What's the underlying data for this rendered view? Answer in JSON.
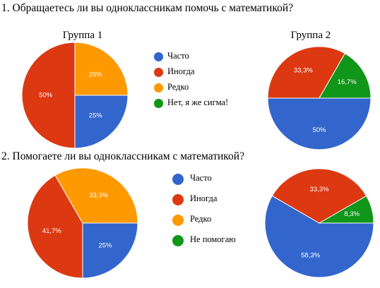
{
  "questions": {
    "q1": "1. Обращаетесь ли вы одноклассникам помочь с математикой?",
    "q2": "2. Помогаете ли вы одноклассникам с математикой?"
  },
  "groups": {
    "g1": "Группа 1",
    "g2": "Группа 2"
  },
  "colors": {
    "blue": "#3366cc",
    "red": "#dc3912",
    "orange": "#ff9900",
    "green": "#109618"
  },
  "legend1": [
    {
      "label": "Часто",
      "color": "#3366cc"
    },
    {
      "label": "Иногда",
      "color": "#dc3912"
    },
    {
      "label": "Редко",
      "color": "#ff9900"
    },
    {
      "label": "Нет, я же сигма!",
      "color": "#109618"
    }
  ],
  "legend2": [
    {
      "label": "Часто",
      "color": "#3366cc"
    },
    {
      "label": "Иногда",
      "color": "#dc3912"
    },
    {
      "label": "Редко",
      "color": "#ff9900"
    },
    {
      "label": "Не помогаю",
      "color": "#109618"
    }
  ],
  "chart_data": [
    {
      "type": "pie",
      "question": "1. Обращаетесь ли вы одноклассникам помочь с математикой?",
      "title": "Группа 1",
      "categories": [
        "Часто",
        "Иногда",
        "Редко",
        "Нет, я же сигма!"
      ],
      "values": [
        25,
        50,
        25,
        0
      ],
      "labels": [
        "25%",
        "50%",
        "25%",
        ""
      ],
      "colors": [
        "#3366cc",
        "#dc3912",
        "#ff9900",
        "#109618"
      ]
    },
    {
      "type": "pie",
      "question": "1. Обращаетесь ли вы одноклассникам помочь с математикой?",
      "title": "Группа 2",
      "categories": [
        "Часто",
        "Иногда",
        "Редко",
        "Нет, я же сигма!"
      ],
      "values": [
        50,
        33.3,
        0,
        16.7
      ],
      "labels": [
        "50%",
        "33,3%",
        "",
        "16,7%"
      ],
      "colors": [
        "#3366cc",
        "#dc3912",
        "#ff9900",
        "#109618"
      ]
    },
    {
      "type": "pie",
      "question": "2. Помогаете ли вы одноклассникам с математикой?",
      "title": "",
      "categories": [
        "Часто",
        "Иногда",
        "Редко",
        "Не помогаю"
      ],
      "values": [
        25,
        41.7,
        33.3,
        0
      ],
      "labels": [
        "25%",
        "41,7%",
        "33,3%",
        ""
      ],
      "colors": [
        "#3366cc",
        "#dc3912",
        "#ff9900",
        "#109618"
      ]
    },
    {
      "type": "pie",
      "question": "2. Помогаете ли вы одноклассникам с математикой?",
      "title": "",
      "categories": [
        "Часто",
        "Иногда",
        "Редко",
        "Не помогаю"
      ],
      "values": [
        58.3,
        33.3,
        0,
        8.3
      ],
      "labels": [
        "58,3%",
        "33,3%",
        "",
        "8,3%"
      ],
      "colors": [
        "#3366cc",
        "#dc3912",
        "#ff9900",
        "#109618"
      ]
    }
  ]
}
